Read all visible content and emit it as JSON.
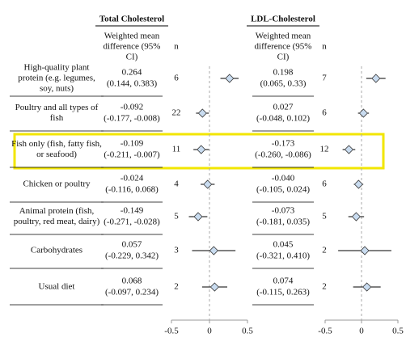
{
  "header": {
    "groups": [
      "Total Cholesterol",
      "LDL-Cholesterol"
    ],
    "measure": "Weighted mean difference (95% CI)",
    "n": "n"
  },
  "axis": {
    "xlim": [
      -0.5,
      0.5
    ],
    "xticks": [
      -0.5,
      0,
      0.5
    ]
  },
  "rows": [
    {
      "label": "High-quality plant protein (e.g. legumes, soy, nuts)",
      "tc": {
        "value": 0.264,
        "value_label": "0.264",
        "ci": [
          0.144,
          0.383
        ],
        "ci_label": "(0.144, 0.383)",
        "n": 6
      },
      "ldl": {
        "value": 0.198,
        "value_label": "0.198",
        "ci": [
          0.065,
          0.33
        ],
        "ci_label": "(0.065, 0.33)",
        "n": 7
      }
    },
    {
      "label": "Poultry and all types of fish",
      "tc": {
        "value": -0.092,
        "value_label": "-0.092",
        "ci": [
          -0.177,
          -0.008
        ],
        "ci_label": "(-0.177, -0.008)",
        "n": 22
      },
      "ldl": {
        "value": 0.027,
        "value_label": "0.027",
        "ci": [
          -0.048,
          0.102
        ],
        "ci_label": "(-0.048, 0.102)",
        "n": 6
      }
    },
    {
      "label": "Fish only (fish, fatty fish, or seafood)",
      "tc": {
        "value": -0.109,
        "value_label": "-0.109",
        "ci": [
          -0.211,
          -0.007
        ],
        "ci_label": "(-0.211, -0.007)",
        "n": 11
      },
      "ldl": {
        "value": -0.173,
        "value_label": "-0.173",
        "ci": [
          -0.26,
          -0.086
        ],
        "ci_label": "(-0.260, -0.086)",
        "n": 12
      }
    },
    {
      "label": "Chicken or poultry",
      "tc": {
        "value": -0.024,
        "value_label": "-0.024",
        "ci": [
          -0.116,
          0.068
        ],
        "ci_label": "(-0.116, 0.068)",
        "n": 4
      },
      "ldl": {
        "value": -0.04,
        "value_label": "-0.040",
        "ci": [
          -0.105,
          0.024
        ],
        "ci_label": "(-0.105, 0.024)",
        "n": 6
      }
    },
    {
      "label": "Animal protein (fish, poultry, red meat, dairy)",
      "tc": {
        "value": -0.149,
        "value_label": "-0.149",
        "ci": [
          -0.271,
          -0.028
        ],
        "ci_label": "(-0.271, -0.028)",
        "n": 5
      },
      "ldl": {
        "value": -0.073,
        "value_label": "-0.073",
        "ci": [
          -0.181,
          0.035
        ],
        "ci_label": "(-0.181, 0.035)",
        "n": 5
      }
    },
    {
      "label": "Carbohydrates",
      "tc": {
        "value": 0.057,
        "value_label": "0.057",
        "ci": [
          -0.229,
          0.342
        ],
        "ci_label": "(-0.229, 0.342)",
        "n": 3
      },
      "ldl": {
        "value": 0.045,
        "value_label": "0.045",
        "ci": [
          -0.321,
          0.41
        ],
        "ci_label": "(-0.321, 0.410)",
        "n": 2
      }
    },
    {
      "label": "Usual diet",
      "tc": {
        "value": 0.068,
        "value_label": "0.068",
        "ci": [
          -0.097,
          0.234
        ],
        "ci_label": "(-0.097, 0.234)",
        "n": 2
      },
      "ldl": {
        "value": 0.074,
        "value_label": "0.074",
        "ci": [
          -0.115,
          0.263
        ],
        "ci_label": "(-0.115, 0.263)",
        "n": 2
      }
    }
  ]
}
